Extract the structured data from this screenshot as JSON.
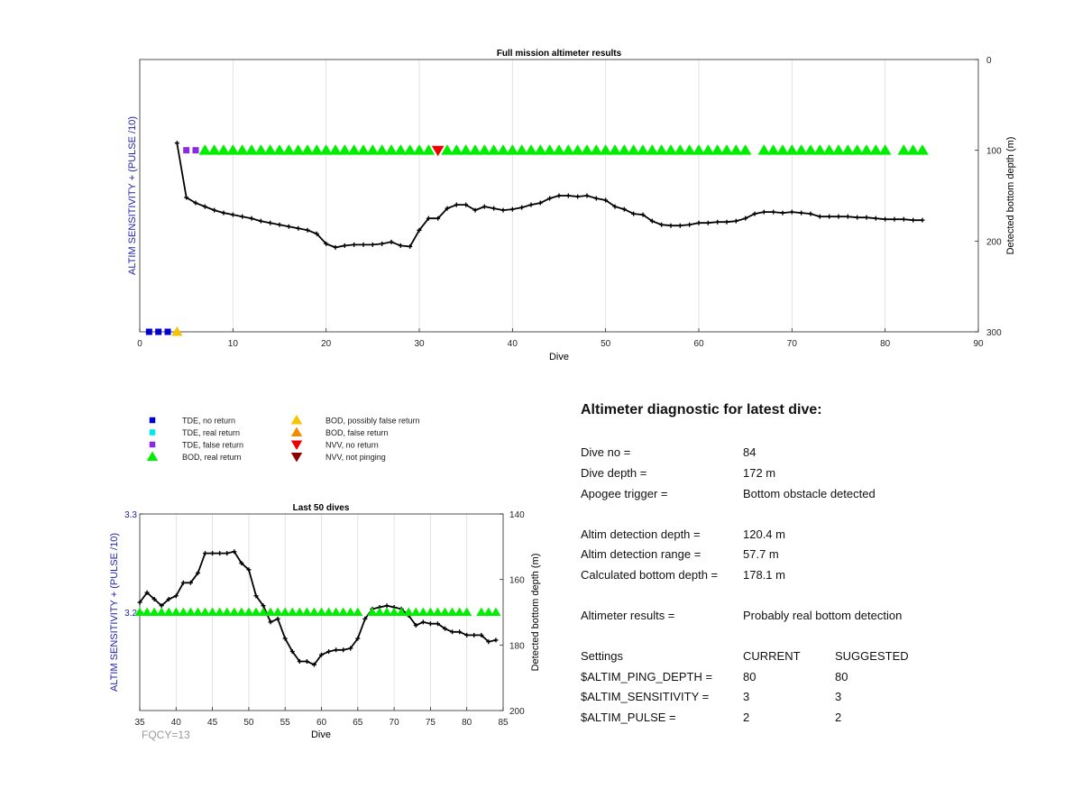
{
  "chart_data": [
    {
      "type": "line",
      "title": "Full mission altimeter results",
      "xlabel": "Dive",
      "ylabel": "ALTIM SENSITIVITY + (PULSE /10)",
      "ylabel_right": "Detected bottom depth (m)",
      "xlim": [
        0,
        90
      ],
      "xticks": [
        "0",
        "10",
        "20",
        "30",
        "40",
        "50",
        "60",
        "70",
        "80",
        "90"
      ],
      "yticks_right": [
        "0",
        "100",
        "200",
        "300"
      ],
      "ylim_right": [
        0,
        300
      ],
      "grid": "vertical",
      "series": [
        {
          "kind": "depth-line",
          "color": "#000000",
          "x": [
            4,
            5,
            6,
            7,
            8,
            9,
            10,
            11,
            12,
            13,
            14,
            15,
            16,
            17,
            18,
            19,
            20,
            21,
            22,
            23,
            24,
            25,
            26,
            27,
            28,
            29,
            30,
            31,
            32,
            33,
            34,
            35,
            36,
            37,
            38,
            39,
            40,
            41,
            42,
            43,
            44,
            45,
            46,
            47,
            48,
            49,
            50,
            51,
            52,
            53,
            54,
            55,
            56,
            57,
            58,
            59,
            60,
            61,
            62,
            63,
            64,
            65,
            66,
            67,
            68,
            69,
            70,
            71,
            72,
            73,
            74,
            75,
            76,
            77,
            78,
            79,
            80,
            81,
            82,
            83,
            84
          ],
          "y": [
            92,
            152,
            158,
            162,
            166,
            169,
            171,
            173,
            175,
            178,
            180,
            182,
            184,
            186,
            188,
            192,
            203,
            207,
            205,
            204,
            204,
            204,
            203,
            201,
            205,
            206,
            188,
            175,
            175,
            164,
            160,
            160,
            166,
            162,
            164,
            166,
            165,
            163,
            160,
            158,
            153,
            150,
            150,
            151,
            150,
            153,
            155,
            162,
            165,
            170,
            171,
            178,
            182,
            183,
            183,
            182,
            180,
            180,
            179,
            179,
            178,
            175,
            170,
            168,
            168,
            169,
            168,
            169,
            170,
            173,
            173,
            173,
            173,
            174,
            174,
            175,
            176,
            176,
            176,
            177,
            177
          ]
        }
      ],
      "markers": {
        "tde_no_return": {
          "color": "#0000cc",
          "x": [
            1,
            2,
            3
          ],
          "level": "bottom"
        },
        "bod_possibly_false": {
          "color": "#f5c400",
          "x": [
            4
          ],
          "level": "bottom"
        },
        "tde_false_return": {
          "color": "#8a2be2",
          "x": [
            5,
            6
          ],
          "level": 100
        },
        "bod_real_return": {
          "color": "#00ee00",
          "x": [
            7,
            8,
            9,
            10,
            11,
            12,
            13,
            14,
            15,
            16,
            17,
            18,
            19,
            20,
            21,
            22,
            23,
            24,
            25,
            26,
            27,
            28,
            29,
            30,
            31,
            33,
            34,
            35,
            36,
            37,
            38,
            39,
            40,
            41,
            42,
            43,
            44,
            45,
            46,
            47,
            48,
            49,
            50,
            51,
            52,
            53,
            54,
            55,
            56,
            57,
            58,
            59,
            60,
            61,
            62,
            63,
            64,
            65,
            67,
            68,
            69,
            70,
            71,
            72,
            73,
            74,
            75,
            76,
            77,
            78,
            79,
            80,
            82,
            83,
            84
          ],
          "level": 100
        },
        "nvv_no_return": {
          "color": "#ee0000",
          "x": [
            32
          ],
          "level": 100
        }
      }
    },
    {
      "type": "line",
      "title": "Last 50 dives",
      "xlabel": "Dive",
      "ylabel": "ALTIM SENSITIVITY + (PULSE /10)",
      "ylabel_right": "Detected bottom depth (m)",
      "xlim": [
        35,
        85
      ],
      "xticks": [
        "35",
        "40",
        "45",
        "50",
        "55",
        "60",
        "65",
        "70",
        "75",
        "80",
        "85"
      ],
      "yticks_left": [
        "3.3",
        "3.2"
      ],
      "ylim_left": [
        3.1,
        3.3
      ],
      "yticks_right": [
        "140",
        "160",
        "180",
        "200"
      ],
      "ylim_right": [
        140,
        200
      ],
      "grid": "vertical",
      "series": [
        {
          "kind": "depth-line",
          "color": "#000000",
          "x": [
            35,
            36,
            37,
            38,
            39,
            40,
            41,
            42,
            43,
            44,
            45,
            46,
            47,
            48,
            49,
            50,
            51,
            52,
            53,
            54,
            55,
            56,
            57,
            58,
            59,
            60,
            61,
            62,
            63,
            64,
            65,
            66,
            67,
            68,
            69,
            70,
            71,
            72,
            73,
            74,
            75,
            76,
            77,
            78,
            79,
            80,
            81,
            82,
            83,
            84
          ],
          "y": [
            167,
            164,
            166,
            168,
            166,
            165,
            161,
            161,
            158,
            152,
            152,
            152,
            152,
            151.5,
            155,
            157,
            165,
            168,
            173,
            172,
            178,
            182,
            185,
            185,
            186,
            183,
            182,
            181.5,
            181.5,
            181,
            178,
            172,
            169,
            168.5,
            168,
            168.5,
            169,
            171,
            174,
            173,
            173.5,
            173.5,
            175,
            176,
            176,
            177,
            177,
            177,
            179,
            178.5
          ]
        }
      ],
      "markers": {
        "bod_real_return": {
          "color": "#00ee00",
          "x": [
            35,
            36,
            37,
            38,
            39,
            40,
            41,
            42,
            43,
            44,
            45,
            46,
            47,
            48,
            49,
            50,
            51,
            52,
            53,
            54,
            55,
            56,
            57,
            58,
            59,
            60,
            61,
            62,
            63,
            64,
            65,
            67,
            68,
            69,
            70,
            71,
            72,
            73,
            74,
            75,
            76,
            77,
            78,
            79,
            80,
            82,
            83,
            84
          ],
          "level": 3.2
        }
      },
      "footnote": "FQCY=13"
    }
  ],
  "legend": [
    {
      "label": "TDE, no return",
      "shape": "square",
      "color": "#0000cc"
    },
    {
      "label": "TDE, real return",
      "shape": "square",
      "color": "#00e5ee"
    },
    {
      "label": "TDE, false return",
      "shape": "square",
      "color": "#8a2be2"
    },
    {
      "label": "BOD, real return",
      "shape": "triangle-up",
      "color": "#00ee00"
    },
    {
      "label": "BOD, possibly false return",
      "shape": "triangle-up",
      "color": "#f5c400"
    },
    {
      "label": "BOD, false return",
      "shape": "triangle-up",
      "color": "#f08c00"
    },
    {
      "label": "NVV, no return",
      "shape": "triangle-down",
      "color": "#ee0000"
    },
    {
      "label": "NVV, not pinging",
      "shape": "triangle-down",
      "color": "#8b0000"
    }
  ],
  "diagnostic": {
    "title": "Altimeter diagnostic for latest dive:",
    "dive_no_label": "Dive no =",
    "dive_no": "84",
    "dive_depth_label": "Dive depth =",
    "dive_depth": "172 m",
    "apogee_label": "Apogee trigger =",
    "apogee": "Bottom obstacle detected",
    "altim_depth_label": "Altim detection depth =",
    "altim_depth": "120.4 m",
    "altim_range_label": "Altim detection range =",
    "altim_range": "57.7 m",
    "calc_depth_label": "Calculated bottom depth =",
    "calc_depth": "178.1 m",
    "results_label": "Altimeter results =",
    "results": "Probably real bottom detection",
    "settings_label": "Settings",
    "current_label": "CURRENT",
    "suggested_label": "SUGGESTED",
    "ping_depth_label": "$ALTIM_PING_DEPTH =",
    "ping_depth_current": "80",
    "ping_depth_suggested": "80",
    "sensitivity_label": "$ALTIM_SENSITIVITY =",
    "sensitivity_current": "3",
    "sensitivity_suggested": "3",
    "pulse_label": "$ALTIM_PULSE =",
    "pulse_current": "2",
    "pulse_suggested": "2"
  },
  "colors": {
    "axis_left": "#2222aa",
    "grid": "#dcdcdc",
    "footnote": "#9a9a9a"
  }
}
